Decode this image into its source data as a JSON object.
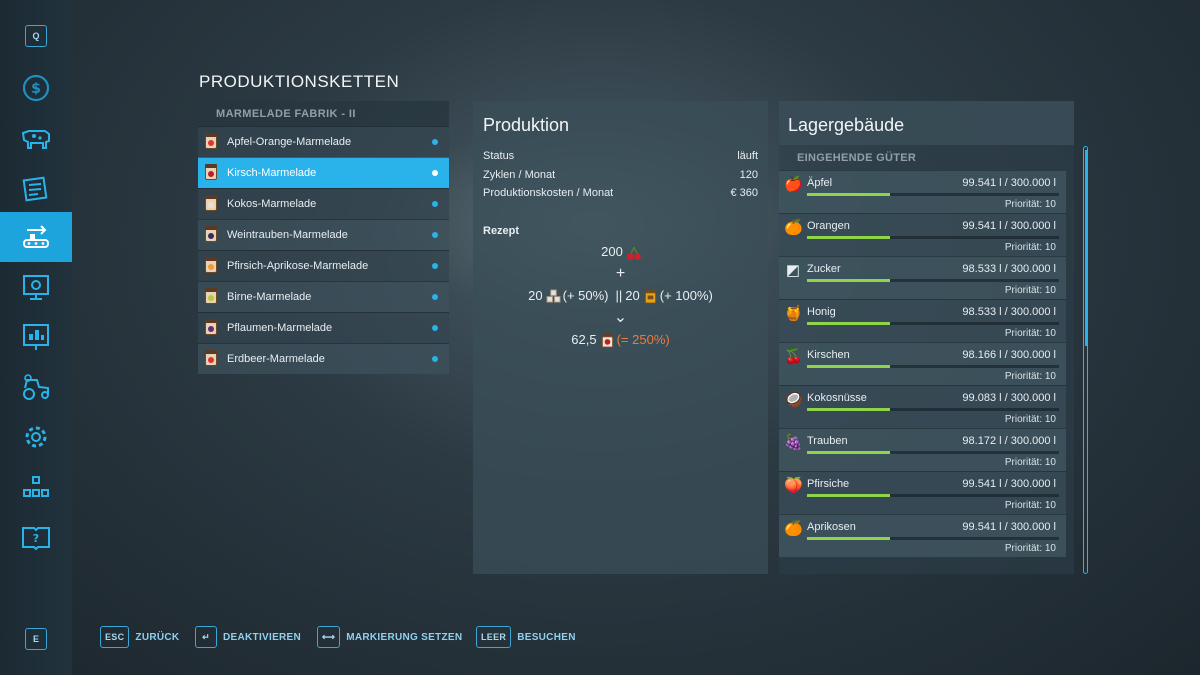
{
  "sidebar": {
    "top_key": "Q",
    "bottom_key": "E",
    "icons": [
      "dollar-icon",
      "cow-icon",
      "contracts-icon",
      "production-icon",
      "map-icon",
      "statistics-icon",
      "vehicles-icon",
      "settings-icon",
      "hierarchy-icon",
      "help-icon"
    ],
    "active_icon": "production-icon"
  },
  "page_title": "PRODUKTIONSKETTEN",
  "production_list": {
    "header": "MARMELADE FABRIK  -  II",
    "items": [
      {
        "label": "Apfel-Orange-Marmelade",
        "jar_color": "#d9382f"
      },
      {
        "label": "Kirsch-Marmelade",
        "jar_color": "#b81f2b",
        "selected": true
      },
      {
        "label": "Kokos-Marmelade",
        "jar_color": "#e9e1cf"
      },
      {
        "label": "Weintrauben-Marmelade",
        "jar_color": "#3b2a5a"
      },
      {
        "label": "Pfirsich-Aprikose-Marmelade",
        "jar_color": "#f09a3a"
      },
      {
        "label": "Birne-Marmelade",
        "jar_color": "#b6c93a"
      },
      {
        "label": "Pflaumen-Marmelade",
        "jar_color": "#6a2a7a"
      },
      {
        "label": "Erdbeer-Marmelade",
        "jar_color": "#e03232"
      }
    ]
  },
  "production": {
    "title": "Produktion",
    "rows": [
      {
        "key": "Status",
        "value": "läuft"
      },
      {
        "key": "Zyklen / Monat",
        "value": "120"
      },
      {
        "key": "Produktionskosten / Monat",
        "value": "€ 360"
      }
    ],
    "recipe_label": "Rezept",
    "recipe": {
      "input_main": "200",
      "plus": "+",
      "sugar_amount": "20",
      "sugar_bonus": "(+ 50%)",
      "separator": "||",
      "honey_amount": "20",
      "honey_bonus": "(+ 100%)",
      "arrow": "⌄",
      "output_amount": "62,5",
      "output_bonus": "(= 250%)"
    }
  },
  "storage": {
    "title": "Lagergebäude",
    "section": "EINGEHENDE GÜTER",
    "goods": [
      {
        "name": "Äpfel",
        "amount": "99.541 l / 300.000 l",
        "priority": "Priorität: 10",
        "icon": "apple-icon",
        "glyph": "🍎",
        "fill": 0.33
      },
      {
        "name": "Orangen",
        "amount": "99.541 l / 300.000 l",
        "priority": "Priorität: 10",
        "icon": "orange-icon",
        "glyph": "🍊",
        "fill": 0.33
      },
      {
        "name": "Zucker",
        "amount": "98.533 l / 300.000 l",
        "priority": "Priorität: 10",
        "icon": "sugar-icon",
        "glyph": "◩",
        "fill": 0.33
      },
      {
        "name": "Honig",
        "amount": "98.533 l / 300.000 l",
        "priority": "Priorität: 10",
        "icon": "honey-icon",
        "glyph": "🍯",
        "fill": 0.33
      },
      {
        "name": "Kirschen",
        "amount": "98.166 l / 300.000 l",
        "priority": "Priorität: 10",
        "icon": "cherry-icon",
        "glyph": "🍒",
        "fill": 0.33
      },
      {
        "name": "Kokosnüsse",
        "amount": "99.083 l / 300.000 l",
        "priority": "Priorität: 10",
        "icon": "coconut-icon",
        "glyph": "🥥",
        "fill": 0.33
      },
      {
        "name": "Trauben",
        "amount": "98.172 l / 300.000 l",
        "priority": "Priorität: 10",
        "icon": "grapes-icon",
        "glyph": "🍇",
        "fill": 0.33
      },
      {
        "name": "Pfirsiche",
        "amount": "99.541 l / 300.000 l",
        "priority": "Priorität: 10",
        "icon": "peach-icon",
        "glyph": "🍑",
        "fill": 0.33
      },
      {
        "name": "Aprikosen",
        "amount": "99.541 l / 300.000 l",
        "priority": "Priorität: 10",
        "icon": "apricot-icon",
        "glyph": "🍊",
        "fill": 0.33
      }
    ]
  },
  "footer": {
    "hints": [
      {
        "key": "ESC",
        "label": "ZURÜCK"
      },
      {
        "key": "↵",
        "label": "DEAKTIVIEREN"
      },
      {
        "key": "⟷",
        "label": "MARKIERUNG SETZEN"
      },
      {
        "key": "LEER",
        "label": "BESUCHEN"
      }
    ]
  },
  "colors": {
    "accent": "#29b3ea",
    "progress": "#8fd54a",
    "bonus": "#ee7a3a"
  }
}
